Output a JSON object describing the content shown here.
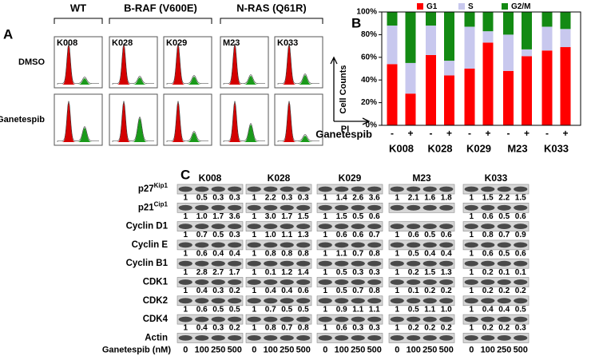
{
  "cell_lines": [
    "K008",
    "K028",
    "K029",
    "M23",
    "K033"
  ],
  "panel_a": {
    "label": "A",
    "groups": [
      "WT",
      "B-RAF (V600E)",
      "N-RAS (Q61R)"
    ],
    "treatments": [
      "DMSO",
      "Ganetespib"
    ],
    "y_axis": "Cell Counts",
    "x_axis": "PI"
  },
  "chart_data": {
    "type": "bar",
    "stacked": true,
    "label": "B",
    "categories": [
      "-",
      "+",
      "-",
      "+",
      "-",
      "+",
      "-",
      "+",
      "-",
      "+"
    ],
    "x_label": "Ganetespib",
    "ylim": [
      0,
      100
    ],
    "yticks": [
      {
        "value": 0,
        "label": "0%"
      },
      {
        "value": 20,
        "label": "20%"
      },
      {
        "value": 40,
        "label": "40%"
      },
      {
        "value": 60,
        "label": "60%"
      },
      {
        "value": 80,
        "label": "80%"
      },
      {
        "value": 100,
        "label": "100%"
      }
    ],
    "series": [
      {
        "name": "G1",
        "color": "#ff0000",
        "values": [
          54,
          28,
          62,
          44,
          50,
          73,
          48,
          61,
          66,
          69
        ]
      },
      {
        "name": "S",
        "color": "#c8c8ee",
        "values": [
          34,
          27,
          26,
          13,
          37,
          10,
          32,
          6,
          21,
          16
        ]
      },
      {
        "name": "G2/M",
        "color": "#138a13",
        "values": [
          12,
          45,
          12,
          43,
          13,
          17,
          20,
          33,
          13,
          15
        ]
      }
    ]
  },
  "panel_c": {
    "label": "C",
    "rows": [
      {
        "name": "p27",
        "sup": "Kip1",
        "values": [
          [
            "1",
            "0.5",
            "0.3",
            "0.3"
          ],
          [
            "1",
            "2.2",
            "0.3",
            "0.3"
          ],
          [
            "1",
            "1.4",
            "2.6",
            "3.6"
          ],
          [
            "1",
            "2.1",
            "1.6",
            "1.8"
          ],
          [
            "1",
            "1.5",
            "2.2",
            "1.5"
          ]
        ]
      },
      {
        "name": "p21",
        "sup": "Cip1",
        "values": [
          [
            "1",
            "1.0",
            "1.7",
            "3.6"
          ],
          [
            "1",
            "3.0",
            "1.7",
            "1.5"
          ],
          [
            "1",
            "1.5",
            "0.5",
            "0.6"
          ],
          null,
          [
            "1",
            "0.6",
            "0.5",
            "0.6"
          ]
        ]
      },
      {
        "name": "Cyclin D1",
        "values": [
          [
            "1",
            "0.7",
            "0.5",
            "0.3"
          ],
          [
            "1",
            "1.0",
            "1.1",
            "1.3"
          ],
          [
            "1",
            "0.6",
            "0.6",
            "0.7"
          ],
          [
            "1",
            "0.6",
            "0.5",
            "0.6"
          ],
          [
            "1",
            "0.8",
            "0.7",
            "0.9"
          ]
        ]
      },
      {
        "name": "Cyclin E",
        "values": [
          [
            "1",
            "0.6",
            "0.4",
            "0.4"
          ],
          [
            "1",
            "0.8",
            "0.8",
            "0.8"
          ],
          [
            "1",
            "1.1",
            "0.7",
            "0.8"
          ],
          [
            "1",
            "0.5",
            "0.4",
            "0.4"
          ],
          [
            "1",
            "0.6",
            "0.5",
            "0.6"
          ]
        ]
      },
      {
        "name": "Cyclin B1",
        "values": [
          [
            "1",
            "2.8",
            "2.7",
            "1.7"
          ],
          [
            "1",
            "0.1",
            "1.2",
            "1.4"
          ],
          [
            "1",
            "0.5",
            "0.3",
            "0.3"
          ],
          [
            "1",
            "0.2",
            "1.5",
            "1.3"
          ],
          [
            "1",
            "0.2",
            "0.1",
            "0.1"
          ]
        ]
      },
      {
        "name": "CDK1",
        "values": [
          [
            "1",
            "0.4",
            "0.3",
            "0.2"
          ],
          [
            "1",
            "0.4",
            "0.4",
            "0.6"
          ],
          [
            "1",
            "0.5",
            "0.7",
            "0.8"
          ],
          [
            "1",
            "0.1",
            "0.2",
            "0.2"
          ],
          [
            "1",
            "0.2",
            "0.2",
            "0.2"
          ]
        ]
      },
      {
        "name": "CDK2",
        "values": [
          [
            "1",
            "0.6",
            "0.5",
            "0.5"
          ],
          [
            "1",
            "0.7",
            "0.5",
            "0.5"
          ],
          [
            "1",
            "0.9",
            "1.1",
            "1.1"
          ],
          [
            "1",
            "0.5",
            "1.1",
            "1.0"
          ],
          [
            "1",
            "0.4",
            "0.4",
            "0.5"
          ]
        ]
      },
      {
        "name": "CDK4",
        "values": [
          [
            "1",
            "0.4",
            "0.3",
            "0.2"
          ],
          [
            "1",
            "0.8",
            "0.7",
            "0.8"
          ],
          [
            "1",
            "0.6",
            "0.3",
            "0.3"
          ],
          [
            "1",
            "0.2",
            "0.2",
            "0.2"
          ],
          [
            "1",
            "0.2",
            "0.2",
            "0.3"
          ]
        ]
      },
      {
        "name": "Actin"
      }
    ],
    "dose_label": "Ganetespib (nM)",
    "doses": [
      "0",
      "100",
      "250",
      "500"
    ]
  }
}
